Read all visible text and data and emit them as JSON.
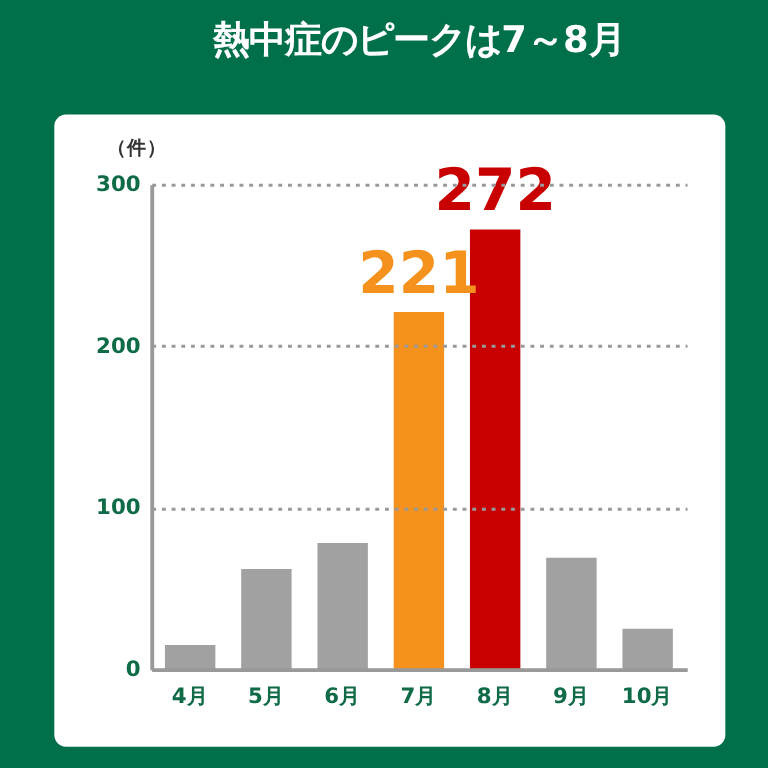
{
  "chart_data": {
    "type": "bar",
    "title": "熱中症のピークは7～8月",
    "ylabel": "（件）",
    "categories": [
      "4月",
      "5月",
      "6月",
      "7月",
      "8月",
      "9月",
      "10月"
    ],
    "values": [
      15,
      62,
      78,
      221,
      272,
      69,
      25
    ],
    "colors": [
      "#a0a1a0",
      "#a0a1a0",
      "#a0a1a0",
      "#f5921e",
      "#c80000",
      "#a0a1a0",
      "#a0a1a0"
    ],
    "value_labels": [
      null,
      null,
      null,
      "221",
      "272",
      null,
      null
    ],
    "ylim": [
      0,
      300
    ],
    "yticks": [
      0,
      100,
      200,
      300
    ],
    "grid": "y"
  }
}
